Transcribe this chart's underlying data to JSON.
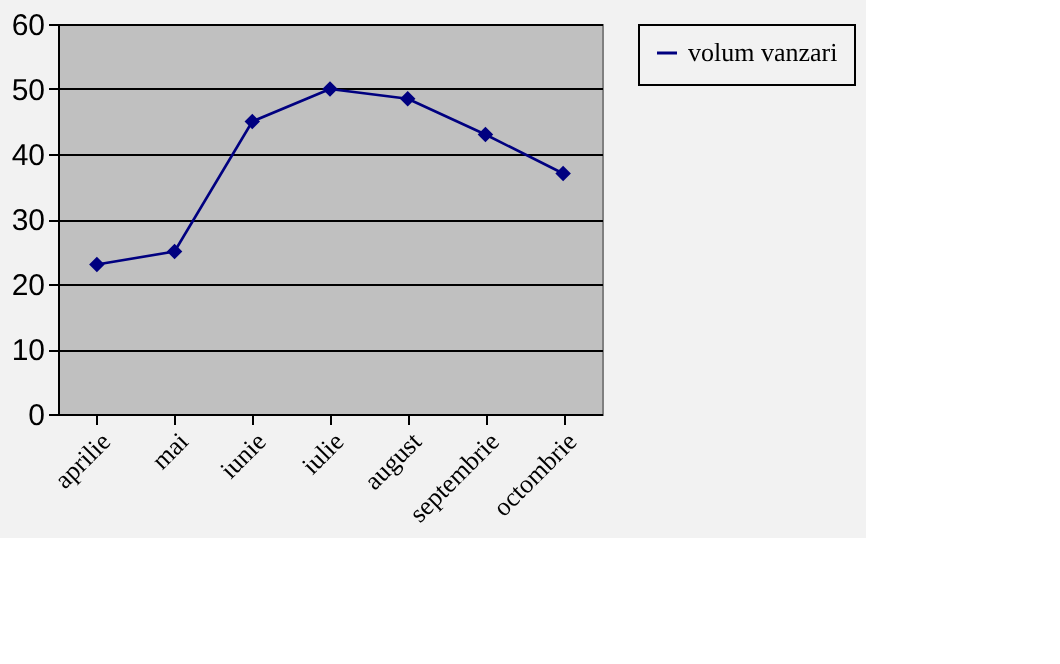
{
  "chart_data": {
    "type": "line",
    "categories": [
      "aprilie",
      "mai",
      "iunie",
      "iulie",
      "august",
      "septembrie",
      "octombrie"
    ],
    "series": [
      {
        "name": "volum vanzari",
        "color": "#000080",
        "values": [
          23,
          25,
          45,
          50,
          48.5,
          43,
          37
        ]
      }
    ],
    "ylim": [
      0,
      60
    ],
    "yticks": [
      0,
      10,
      20,
      30,
      40,
      50,
      60
    ],
    "grid": "y",
    "legend": "right",
    "marker": "diamond",
    "line_style": "solid"
  }
}
